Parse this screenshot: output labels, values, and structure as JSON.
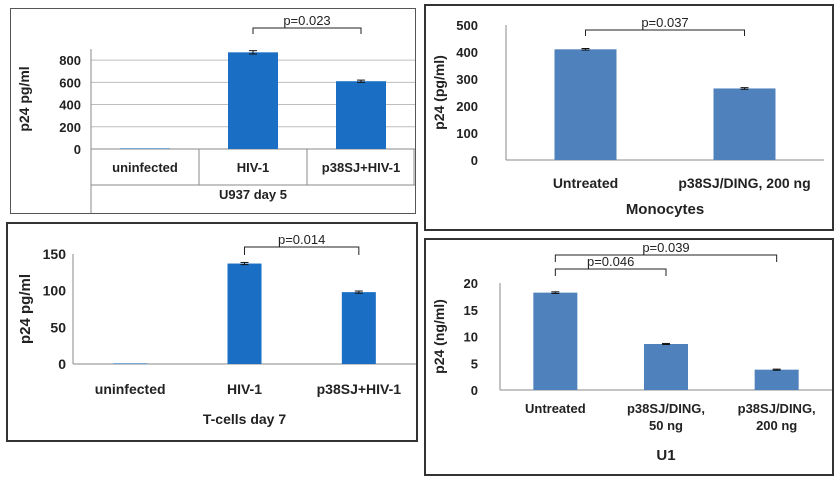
{
  "chart_data": [
    {
      "type": "bar",
      "id": "u937",
      "categories": [
        "uninfected",
        "HIV-1",
        "p38SJ+HIV-1"
      ],
      "values": [
        5,
        870,
        610
      ],
      "errors": [
        0,
        15,
        10
      ],
      "ylabel": "p24 pg/ml",
      "xlabel": "U937 day 5",
      "yticks": [
        0,
        200,
        400,
        600,
        800
      ],
      "ylim": [
        0,
        900
      ],
      "color": "#1a6fc4",
      "grid": true,
      "brackets": [
        {
          "from": 1,
          "to": 2,
          "label": "p=0.023"
        }
      ]
    },
    {
      "type": "bar",
      "id": "monocytes",
      "categories": [
        "Untreated",
        "p38SJ/DING, 200 ng"
      ],
      "values": [
        410,
        265
      ],
      "errors": [
        3,
        3
      ],
      "ylabel": "p24 (pg/ml)",
      "xlabel": "Monocytes",
      "yticks": [
        0,
        100,
        200,
        300,
        400,
        500
      ],
      "ylim": [
        0,
        500
      ],
      "color": "#4f81bd",
      "grid": false,
      "brackets": [
        {
          "from": 0,
          "to": 1,
          "label": "p=0.037"
        }
      ]
    },
    {
      "type": "bar",
      "id": "tcells",
      "categories": [
        "uninfected",
        "HIV-1",
        "p38SJ+HIV-1"
      ],
      "values": [
        0.5,
        137,
        98
      ],
      "errors": [
        0,
        1.5,
        1.5
      ],
      "ylabel": "p24 pg/ml",
      "xlabel": "T-cells day 7",
      "yticks": [
        0,
        50,
        100,
        150
      ],
      "ylim": [
        0,
        150
      ],
      "color": "#1a6fc4",
      "grid": false,
      "brackets": [
        {
          "from": 1,
          "to": 2,
          "label": "p=0.014"
        }
      ]
    },
    {
      "type": "bar",
      "id": "u1",
      "categories": [
        [
          "Untreated"
        ],
        [
          "p38SJ/DING,",
          "50 ng"
        ],
        [
          "p38SJ/DING,",
          "200 ng"
        ]
      ],
      "values": [
        18.2,
        8.6,
        3.8
      ],
      "errors": [
        0.15,
        0.1,
        0.1
      ],
      "ylabel": "p24 (ng/ml)",
      "xlabel": "U1",
      "yticks": [
        0,
        5,
        10,
        15,
        20
      ],
      "ylim": [
        0,
        20
      ],
      "color": "#4f81bd",
      "grid": false,
      "brackets": [
        {
          "from": 0,
          "to": 1,
          "label": "p=0.046"
        },
        {
          "from": 0,
          "to": 2,
          "label": "p=0.039"
        }
      ]
    }
  ]
}
